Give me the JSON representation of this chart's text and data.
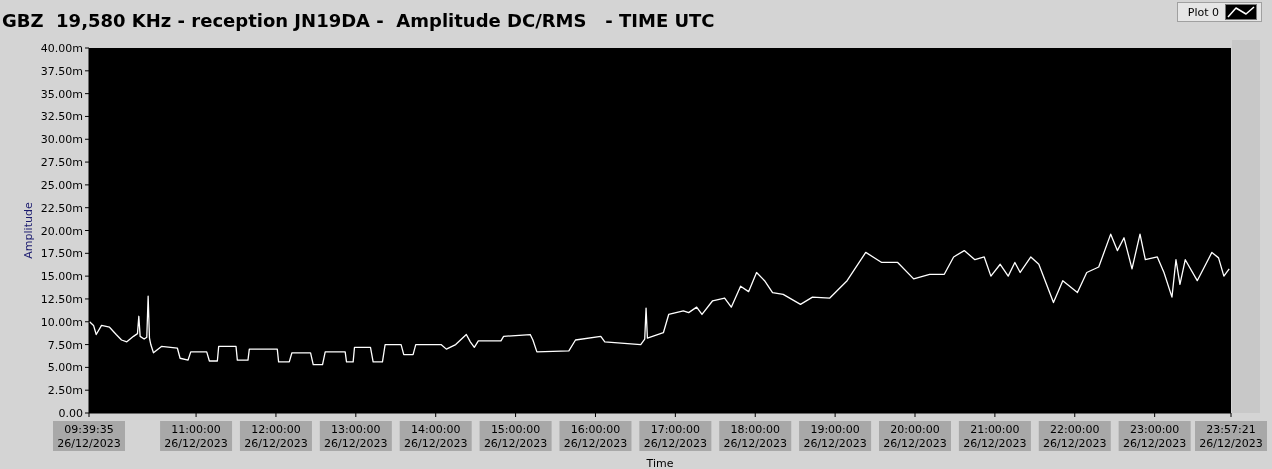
{
  "chart_data": {
    "type": "line",
    "title": "GBZ  19,580 KHz - reception JN19DA -  Amplitude DC/RMS   - TIME UTC",
    "xlabel": "Time",
    "ylabel": "Amplitude",
    "legend": "top right",
    "xlim": [
      "2023-12-26T09:39:35",
      "2023-12-26T23:57:21"
    ],
    "xticks": [
      {
        "value": "2023-12-26T09:39:35",
        "label": "09:39:35\n26/12/2023"
      },
      {
        "value": "2023-12-26T11:00",
        "label": "11:00:00\n26/12/2023"
      },
      {
        "value": "2023-12-26T12:00",
        "label": "12:00:00\n26/12/2023"
      },
      {
        "value": "2023-12-26T13:00",
        "label": "13:00:00\n26/12/2023"
      },
      {
        "value": "2023-12-26T14:00",
        "label": "14:00:00\n26/12/2023"
      },
      {
        "value": "2023-12-26T15:00",
        "label": "15:00:00\n26/12/2023"
      },
      {
        "value": "2023-12-26T16:00",
        "label": "16:00:00\n26/12/2023"
      },
      {
        "value": "2023-12-26T17:00",
        "label": "17:00:00\n26/12/2023"
      },
      {
        "value": "2023-12-26T18:00",
        "label": "18:00:00\n26/12/2023"
      },
      {
        "value": "2023-12-26T19:00",
        "label": "19:00:00\n26/12/2023"
      },
      {
        "value": "2023-12-26T20:00",
        "label": "20:00:00\n26/12/2023"
      },
      {
        "value": "2023-12-26T21:00",
        "label": "21:00:00\n26/12/2023"
      },
      {
        "value": "2023-12-26T22:00",
        "label": "22:00:00\n26/12/2023"
      },
      {
        "value": "2023-12-26T23:00",
        "label": "23:00:00\n26/12/2023"
      },
      {
        "value": "2023-12-26T23:57:21",
        "label": "23:57:21\n26/12/2023"
      }
    ],
    "ylim": [
      0,
      40
    ],
    "yticks": [
      {
        "value": 0,
        "label": "0.00"
      },
      {
        "value": 2.5,
        "label": "2.50m"
      },
      {
        "value": 5,
        "label": "5.00m"
      },
      {
        "value": 7.5,
        "label": "7.50m"
      },
      {
        "value": 10,
        "label": "10.00m"
      },
      {
        "value": 12.5,
        "label": "12.50m"
      },
      {
        "value": 15,
        "label": "15.00m"
      },
      {
        "value": 17.5,
        "label": "17.50m"
      },
      {
        "value": 20,
        "label": "20.00m"
      },
      {
        "value": 22.5,
        "label": "22.50m"
      },
      {
        "value": 25,
        "label": "25.00m"
      },
      {
        "value": 27.5,
        "label": "27.50m"
      },
      {
        "value": 30,
        "label": "30.00m"
      },
      {
        "value": 32.5,
        "label": "32.50m"
      },
      {
        "value": 35,
        "label": "35.00m"
      },
      {
        "value": 37.5,
        "label": "37.50m"
      },
      {
        "value": 40,
        "label": "40.00m"
      }
    ],
    "x": [
      "2023-12-26T09:40",
      "2023-12-26T09:43",
      "2023-12-26T09:45",
      "2023-12-26T09:49",
      "2023-12-26T09:55",
      "2023-12-26T10:00",
      "2023-12-26T10:04",
      "2023-12-26T10:08",
      "2023-12-26T10:13",
      "2023-12-26T10:16",
      "2023-12-26T10:17",
      "2023-12-26T10:18",
      "2023-12-26T10:21",
      "2023-12-26T10:23",
      "2023-12-26T10:24",
      "2023-12-26T10:25",
      "2023-12-26T10:26",
      "2023-12-26T10:28",
      "2023-12-26T10:34",
      "2023-12-26T10:46",
      "2023-12-26T10:48",
      "2023-12-26T10:54",
      "2023-12-26T10:56",
      "2023-12-26T11:08",
      "2023-12-26T11:10",
      "2023-12-26T11:16",
      "2023-12-26T11:17",
      "2023-12-26T11:30",
      "2023-12-26T11:31",
      "2023-12-26T11:39",
      "2023-12-26T11:40",
      "2023-12-26T12:01",
      "2023-12-26T12:02",
      "2023-12-26T12:10",
      "2023-12-26T12:12",
      "2023-12-26T12:26",
      "2023-12-26T12:28",
      "2023-12-26T12:35",
      "2023-12-26T12:37",
      "2023-12-26T12:52",
      "2023-12-26T12:53",
      "2023-12-26T12:58",
      "2023-12-26T12:59",
      "2023-12-26T13:11",
      "2023-12-26T13:13",
      "2023-12-26T13:20",
      "2023-12-26T13:22",
      "2023-12-26T13:34",
      "2023-12-26T13:36",
      "2023-12-26T13:43",
      "2023-12-26T13:45",
      "2023-12-26T14:04",
      "2023-12-26T14:08",
      "2023-12-26T14:15",
      "2023-12-26T14:23",
      "2023-12-26T14:26",
      "2023-12-26T14:29",
      "2023-12-26T14:32",
      "2023-12-26T14:49",
      "2023-12-26T14:51",
      "2023-12-26T15:11",
      "2023-12-26T15:13",
      "2023-12-26T15:16",
      "2023-12-26T15:40",
      "2023-12-26T15:45",
      "2023-12-26T16:04",
      "2023-12-26T16:07",
      "2023-12-26T16:34",
      "2023-12-26T16:37",
      "2023-12-26T16:38",
      "2023-12-26T16:39",
      "2023-12-26T16:51",
      "2023-12-26T16:55",
      "2023-12-26T17:06",
      "2023-12-26T17:10",
      "2023-12-26T17:16",
      "2023-12-26T17:20",
      "2023-12-26T17:28",
      "2023-12-26T17:37",
      "2023-12-26T17:42",
      "2023-12-26T17:49",
      "2023-12-26T17:55",
      "2023-12-26T18:01",
      "2023-12-26T18:07",
      "2023-12-26T18:13",
      "2023-12-26T18:21",
      "2023-12-26T18:34",
      "2023-12-26T18:43",
      "2023-12-26T18:56",
      "2023-12-26T19:09",
      "2023-12-26T19:23",
      "2023-12-26T19:35",
      "2023-12-26T19:47",
      "2023-12-26T19:59",
      "2023-12-26T20:11",
      "2023-12-26T20:22",
      "2023-12-26T20:29",
      "2023-12-26T20:37",
      "2023-12-26T20:45",
      "2023-12-26T20:52",
      "2023-12-26T20:57",
      "2023-12-26T21:04",
      "2023-12-26T21:10",
      "2023-12-26T21:15",
      "2023-12-26T21:19",
      "2023-12-26T21:27",
      "2023-12-26T21:33",
      "2023-12-26T21:44",
      "2023-12-26T21:51",
      "2023-12-26T22:02",
      "2023-12-26T22:09",
      "2023-12-26T22:18",
      "2023-12-26T22:27",
      "2023-12-26T22:32",
      "2023-12-26T22:37",
      "2023-12-26T22:43",
      "2023-12-26T22:49",
      "2023-12-26T22:53",
      "2023-12-26T23:02",
      "2023-12-26T23:07",
      "2023-12-26T23:13",
      "2023-12-26T23:16",
      "2023-12-26T23:19",
      "2023-12-26T23:23",
      "2023-12-26T23:32",
      "2023-12-26T23:43",
      "2023-12-26T23:48",
      "2023-12-26T23:52",
      "2023-12-26T23:56"
    ],
    "series": [
      {
        "name": "Plot 0",
        "color": "#ffffff",
        "values": [
          10.0,
          9.6,
          8.6,
          9.6,
          9.4,
          8.6,
          8.0,
          7.8,
          8.4,
          8.7,
          10.6,
          8.4,
          8.1,
          8.3,
          12.8,
          8.2,
          7.5,
          6.6,
          7.3,
          7.1,
          6.0,
          5.8,
          6.7,
          6.7,
          5.7,
          5.7,
          7.3,
          7.3,
          5.8,
          5.8,
          7.0,
          7.0,
          5.6,
          5.6,
          6.6,
          6.6,
          5.3,
          5.3,
          6.7,
          6.7,
          5.6,
          5.6,
          7.2,
          7.2,
          5.6,
          5.6,
          7.5,
          7.5,
          6.4,
          6.4,
          7.5,
          7.5,
          7.0,
          7.5,
          8.6,
          7.8,
          7.2,
          7.9,
          7.9,
          8.4,
          8.6,
          8.0,
          6.7,
          6.8,
          8.0,
          8.4,
          7.8,
          7.5,
          8.1,
          11.5,
          8.2,
          8.8,
          10.8,
          11.2,
          11.0,
          11.6,
          10.8,
          12.3,
          12.6,
          11.6,
          13.9,
          13.3,
          15.4,
          14.5,
          13.2,
          13.0,
          11.9,
          12.7,
          12.6,
          14.5,
          17.6,
          16.5,
          16.5,
          14.7,
          15.2,
          15.2,
          17.1,
          17.8,
          16.8,
          17.1,
          15.0,
          16.3,
          15.0,
          16.5,
          15.4,
          17.1,
          16.3,
          12.1,
          14.5,
          13.2,
          15.4,
          16.0,
          19.6,
          17.8,
          19.2,
          15.8,
          19.6,
          16.8,
          17.1,
          15.4,
          12.7,
          16.8,
          14.1,
          16.8,
          14.5,
          17.6,
          17.0,
          15.0,
          15.8
        ]
      }
    ]
  }
}
